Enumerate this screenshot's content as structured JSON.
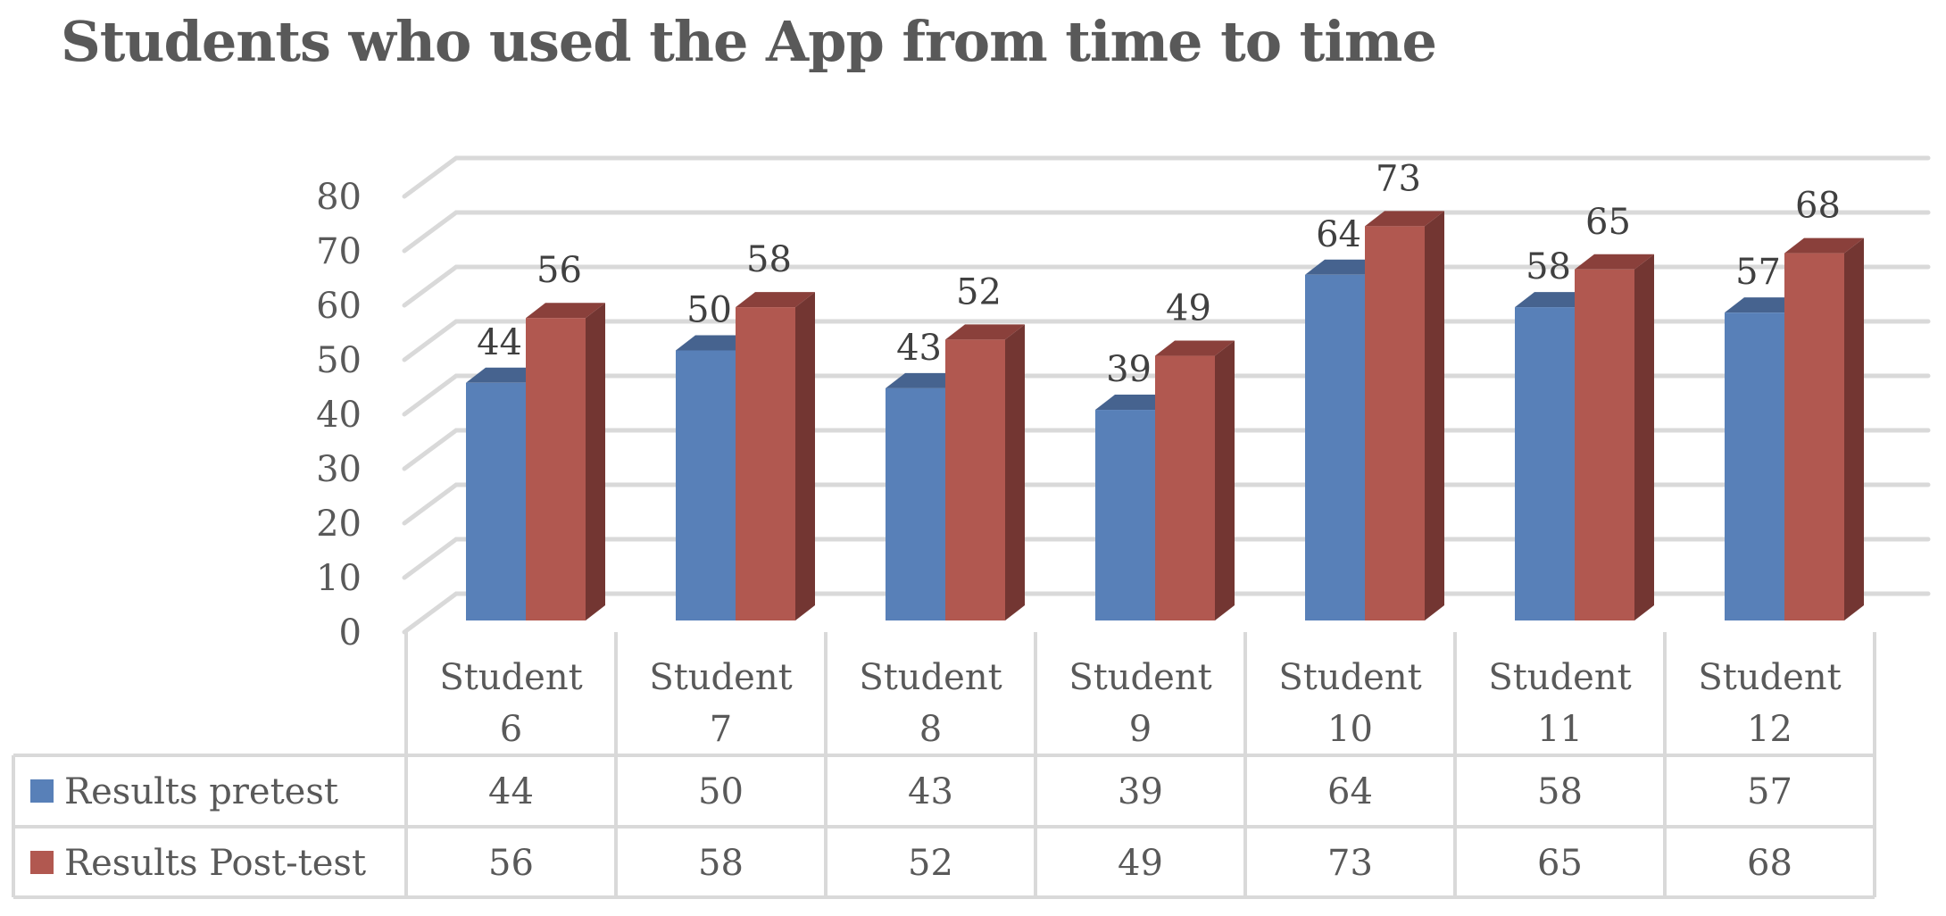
{
  "chart": {
    "title": "Students who used the App from time to time"
  },
  "colors": {
    "pretest_front": "#5880B8",
    "pretest_top": "#46638F",
    "pretest_side": "#3E5883",
    "posttest_front": "#B15850",
    "posttest_top": "#8A403B",
    "posttest_side": "#733632",
    "grid": "#D9D9D9",
    "text": "#595959"
  },
  "chart_data": {
    "type": "bar",
    "variant": "3d-clustered-column with data table",
    "title": "Students who used the App from time to time",
    "xlabel": "",
    "ylabel": "",
    "ylim": [
      0,
      80
    ],
    "yticks": [
      0,
      10,
      20,
      30,
      40,
      50,
      60,
      70,
      80
    ],
    "grid": true,
    "legend_position": "data table (bottom)",
    "categories": [
      "Student 6",
      "Student 7",
      "Student 8",
      "Student 9",
      "Student 10",
      "Student 11",
      "Student 12"
    ],
    "series": [
      {
        "name": "Results pretest",
        "color": "#5880B8",
        "values": [
          44,
          50,
          43,
          39,
          64,
          58,
          57
        ]
      },
      {
        "name": "Results Post-test",
        "color": "#B15850",
        "values": [
          56,
          58,
          52,
          49,
          73,
          65,
          68
        ]
      }
    ],
    "data_labels": true
  },
  "table": {
    "header_line1": "Student",
    "header_numbers": [
      "6",
      "7",
      "8",
      "9",
      "10",
      "11",
      "12"
    ]
  }
}
